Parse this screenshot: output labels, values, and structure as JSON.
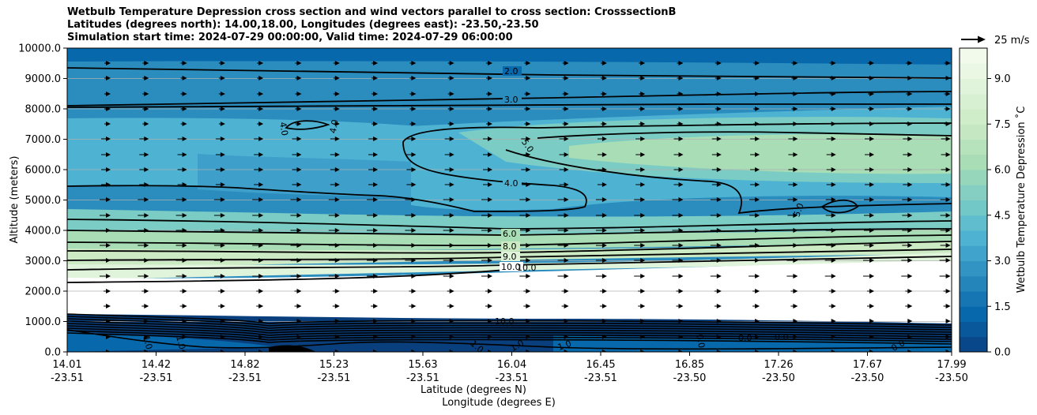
{
  "title": {
    "line1": "Wetbulb Temperature Depression cross section and wind vectors parallel to cross section: CrosssectionB",
    "line2": "Latitudes (degrees north): 14.00,18.00, Longitudes (degrees east): -23.50,-23.50",
    "line3": "Simulation start time: 2024-07-29 00:00:00, Valid time: 2024-07-29 06:00:00"
  },
  "chart_data": {
    "type": "heatmap",
    "title": "Wetbulb Temperature Depression cross section and wind vectors parallel to cross section: CrosssectionB",
    "xlabel_line1": "Latitude (degrees N)",
    "xlabel_line2": "Longitude (degrees E)",
    "ylabel": "Altitude (meters)",
    "ylim": [
      0,
      10000
    ],
    "yticks": [
      "0.0",
      "1000.0",
      "2000.0",
      "3000.0",
      "4000.0",
      "5000.0",
      "6000.0",
      "7000.0",
      "8000.0",
      "9000.0",
      "10000.0"
    ],
    "xticks_lat": [
      "14.01",
      "14.42",
      "14.82",
      "15.23",
      "15.63",
      "16.04",
      "16.45",
      "16.85",
      "17.26",
      "17.67",
      "17.99"
    ],
    "xticks_lon": [
      "-23.51",
      "-23.51",
      "-23.51",
      "-23.51",
      "-23.51",
      "-23.51",
      "-23.51",
      "-23.50",
      "-23.50",
      "-23.50",
      "-23.50"
    ],
    "colorbar": {
      "label": "Wetbulb Temperature Depression ˚C",
      "ticks": [
        "0.0",
        "1.5",
        "3.0",
        "4.5",
        "6.0",
        "7.5",
        "9.0"
      ],
      "range": [
        0,
        10
      ]
    },
    "quiver_key": "25 m/s",
    "contour_labels": [
      "2.0",
      "3.0",
      "4.0",
      "4.0",
      "4.0",
      "5.0",
      "4.0",
      "5.0",
      "6.0",
      "8.0",
      "9.0",
      "10.0",
      "10.0",
      "10.0",
      "1.0",
      "1.0",
      "1.0",
      "1.0",
      "1.0",
      "0.0",
      "0.0",
      "0.0",
      "0.0"
    ],
    "field_profile": [
      {
        "altitude": 0,
        "value": 0.5
      },
      {
        "altitude": 500,
        "value": 1.0
      },
      {
        "altitude": 1000,
        "value": 10.0
      },
      {
        "altitude": 2000,
        "value": 10.0
      },
      {
        "altitude": 3000,
        "value": 9.5
      },
      {
        "altitude": 3500,
        "value": 7.5
      },
      {
        "altitude": 4000,
        "value": 5.5
      },
      {
        "altitude": 5000,
        "value": 4.0
      },
      {
        "altitude": 6000,
        "value": 4.0
      },
      {
        "altitude": 7000,
        "value": 4.5
      },
      {
        "altitude": 8000,
        "value": 3.3
      },
      {
        "altitude": 9000,
        "value": 2.3
      },
      {
        "altitude": 10000,
        "value": 1.2
      }
    ]
  },
  "colors": {
    "cmap": [
      "#084081",
      "#0868ac",
      "#2b8cbe",
      "#4eb3d3",
      "#7bccc4",
      "#a8ddb5",
      "#ccebc5",
      "#e0f3db",
      "#f7fcf0"
    ]
  }
}
